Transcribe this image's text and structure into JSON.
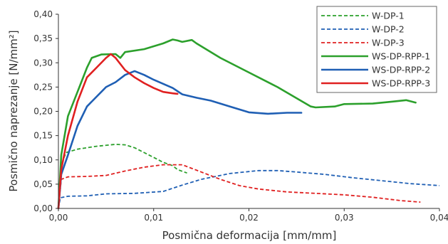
{
  "chart_data": {
    "type": "line",
    "title": "",
    "xlabel": "Posmična deformacija [mm/mm]",
    "ylabel": "Posmično naprezanje [N/mm²]",
    "xlim": [
      0,
      0.04
    ],
    "ylim": [
      0,
      0.4
    ],
    "x_ticks": [
      "0,00",
      "0,01",
      "0,02",
      "0,03",
      "0,04"
    ],
    "y_ticks": [
      "0,00",
      "0,05",
      "0,10",
      "0,15",
      "0,20",
      "0,25",
      "0,30",
      "0,35",
      "0,40"
    ],
    "grid": false,
    "legend_position": "top-right",
    "series": [
      {
        "name": "W-DP-1",
        "color": "#2ca02c",
        "dashed": true,
        "points": [
          [
            0,
            0
          ],
          [
            0.0003,
            0.09
          ],
          [
            0.0008,
            0.115
          ],
          [
            0.002,
            0.122
          ],
          [
            0.004,
            0.128
          ],
          [
            0.006,
            0.132
          ],
          [
            0.007,
            0.131
          ],
          [
            0.008,
            0.125
          ],
          [
            0.009,
            0.115
          ],
          [
            0.01,
            0.105
          ],
          [
            0.011,
            0.095
          ],
          [
            0.012,
            0.088
          ],
          [
            0.0125,
            0.08
          ],
          [
            0.0135,
            0.073
          ]
        ]
      },
      {
        "name": "W-DP-2",
        "color": "#1f5fb4",
        "dashed": true,
        "points": [
          [
            0,
            0
          ],
          [
            0.0002,
            0.022
          ],
          [
            0.001,
            0.025
          ],
          [
            0.003,
            0.026
          ],
          [
            0.005,
            0.03
          ],
          [
            0.008,
            0.031
          ],
          [
            0.011,
            0.035
          ],
          [
            0.013,
            0.048
          ],
          [
            0.015,
            0.06
          ],
          [
            0.018,
            0.072
          ],
          [
            0.021,
            0.078
          ],
          [
            0.023,
            0.078
          ],
          [
            0.025,
            0.075
          ],
          [
            0.028,
            0.07
          ],
          [
            0.031,
            0.063
          ],
          [
            0.034,
            0.057
          ],
          [
            0.037,
            0.051
          ],
          [
            0.04,
            0.047
          ]
        ]
      },
      {
        "name": "W-DP-3",
        "color": "#e02020",
        "dashed": true,
        "points": [
          [
            0,
            0
          ],
          [
            0.0003,
            0.06
          ],
          [
            0.001,
            0.065
          ],
          [
            0.003,
            0.066
          ],
          [
            0.005,
            0.068
          ],
          [
            0.007,
            0.077
          ],
          [
            0.009,
            0.085
          ],
          [
            0.011,
            0.09
          ],
          [
            0.013,
            0.09
          ],
          [
            0.015,
            0.075
          ],
          [
            0.017,
            0.06
          ],
          [
            0.019,
            0.047
          ],
          [
            0.021,
            0.04
          ],
          [
            0.024,
            0.034
          ],
          [
            0.027,
            0.031
          ],
          [
            0.03,
            0.028
          ],
          [
            0.033,
            0.023
          ],
          [
            0.036,
            0.016
          ],
          [
            0.038,
            0.013
          ]
        ]
      },
      {
        "name": "WS-DP-RPP-1",
        "color": "#2ca02c",
        "dashed": false,
        "points": [
          [
            0,
            0
          ],
          [
            0.0003,
            0.11
          ],
          [
            0.001,
            0.19
          ],
          [
            0.002,
            0.24
          ],
          [
            0.003,
            0.29
          ],
          [
            0.0035,
            0.31
          ],
          [
            0.0045,
            0.317
          ],
          [
            0.006,
            0.318
          ],
          [
            0.0065,
            0.31
          ],
          [
            0.007,
            0.322
          ],
          [
            0.009,
            0.328
          ],
          [
            0.011,
            0.34
          ],
          [
            0.012,
            0.348
          ],
          [
            0.0125,
            0.346
          ],
          [
            0.013,
            0.343
          ],
          [
            0.014,
            0.347
          ],
          [
            0.0145,
            0.34
          ],
          [
            0.017,
            0.31
          ],
          [
            0.02,
            0.28
          ],
          [
            0.023,
            0.25
          ],
          [
            0.0265,
            0.21
          ],
          [
            0.027,
            0.208
          ],
          [
            0.029,
            0.21
          ],
          [
            0.03,
            0.215
          ],
          [
            0.033,
            0.216
          ],
          [
            0.035,
            0.22
          ],
          [
            0.0365,
            0.223
          ],
          [
            0.0375,
            0.218
          ]
        ]
      },
      {
        "name": "WS-DP-RPP-2",
        "color": "#1f5fb4",
        "dashed": false,
        "points": [
          [
            0,
            0
          ],
          [
            0.0003,
            0.07
          ],
          [
            0.001,
            0.11
          ],
          [
            0.002,
            0.17
          ],
          [
            0.003,
            0.21
          ],
          [
            0.004,
            0.23
          ],
          [
            0.005,
            0.25
          ],
          [
            0.006,
            0.26
          ],
          [
            0.007,
            0.275
          ],
          [
            0.008,
            0.283
          ],
          [
            0.009,
            0.275
          ],
          [
            0.01,
            0.265
          ],
          [
            0.012,
            0.248
          ],
          [
            0.013,
            0.235
          ],
          [
            0.0145,
            0.228
          ],
          [
            0.016,
            0.222
          ],
          [
            0.018,
            0.21
          ],
          [
            0.02,
            0.198
          ],
          [
            0.022,
            0.195
          ],
          [
            0.024,
            0.197
          ],
          [
            0.0255,
            0.197
          ]
        ]
      },
      {
        "name": "WS-DP-RPP-3",
        "color": "#e02020",
        "dashed": false,
        "points": [
          [
            0,
            0
          ],
          [
            0.0003,
            0.08
          ],
          [
            0.001,
            0.15
          ],
          [
            0.002,
            0.22
          ],
          [
            0.003,
            0.27
          ],
          [
            0.004,
            0.29
          ],
          [
            0.005,
            0.31
          ],
          [
            0.0055,
            0.318
          ],
          [
            0.006,
            0.31
          ],
          [
            0.007,
            0.285
          ],
          [
            0.008,
            0.27
          ],
          [
            0.009,
            0.258
          ],
          [
            0.01,
            0.248
          ],
          [
            0.011,
            0.24
          ],
          [
            0.012,
            0.237
          ],
          [
            0.0125,
            0.236
          ]
        ]
      }
    ]
  }
}
